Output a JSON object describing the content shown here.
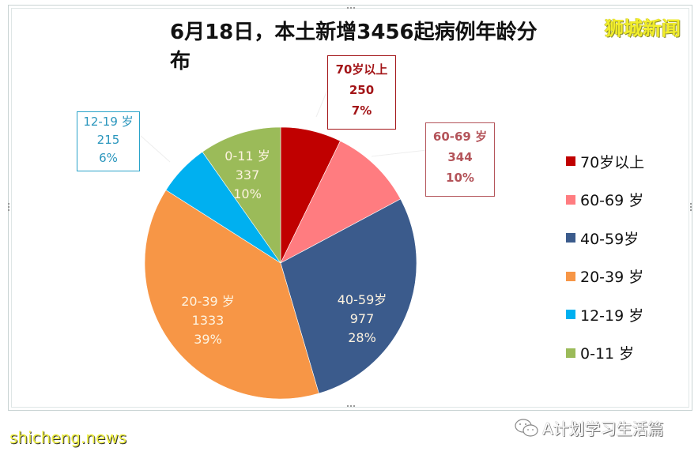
{
  "title": "6月18日，本土新增3456起病例年龄分布",
  "brand": "狮城新闻",
  "footer": {
    "left_watermark": "shicheng.news",
    "right_watermark": "A计划学习生活篇"
  },
  "callouts": {
    "age70": {
      "label": "70岁以上",
      "value": "250",
      "pct": "7%"
    },
    "age60": {
      "label": "60-69 岁",
      "value": "344",
      "pct": "10%"
    },
    "age12": {
      "label": "12-19 岁",
      "value": "215",
      "pct": "6%"
    }
  },
  "slice_labels": {
    "age0": {
      "label": "0-11 岁",
      "value": "337",
      "pct": "10%"
    },
    "age20": {
      "label": "20-39 岁",
      "value": "1333",
      "pct": "39%"
    },
    "age40": {
      "label": "40-59岁",
      "value": "977",
      "pct": "28%"
    }
  },
  "legend": [
    {
      "label": "70岁以上",
      "color": "#c00000"
    },
    {
      "label": "60-69 岁",
      "color": "#ff7c80"
    },
    {
      "label": "40-59岁",
      "color": "#3b5b8c"
    },
    {
      "label": "20-39 岁",
      "color": "#f79646"
    },
    {
      "label": "12-19 岁",
      "color": "#00b0f0"
    },
    {
      "label": "0-11 岁",
      "color": "#9bbb59"
    }
  ],
  "chart_data": {
    "type": "pie",
    "title": "6月18日，本土新增3456起病例年龄分布",
    "categories": [
      "70岁以上",
      "60-69 岁",
      "40-59岁",
      "20-39 岁",
      "12-19 岁",
      "0-11 岁"
    ],
    "values": [
      250,
      344,
      977,
      1333,
      215,
      337
    ],
    "percentages": [
      "7%",
      "10%",
      "28%",
      "39%",
      "6%",
      "10%"
    ],
    "colors": [
      "#c00000",
      "#ff7c80",
      "#3b5b8c",
      "#f79646",
      "#00b0f0",
      "#9bbb59"
    ],
    "total": 3456,
    "start_angle_deg": 0,
    "direction": "clockwise",
    "legend_position": "right"
  }
}
